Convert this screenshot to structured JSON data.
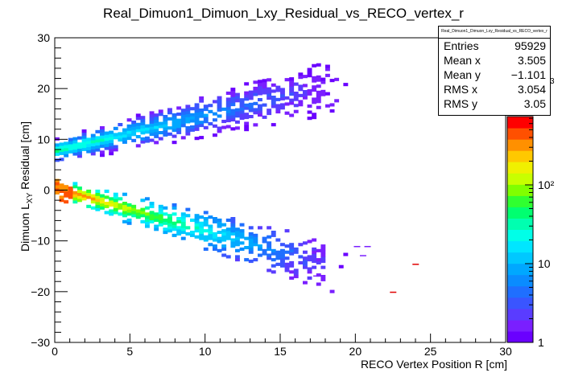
{
  "chart_data": {
    "type": "heatmap",
    "title": "Real_Dimuon1_Dimuon_Lxy_Residual_vs_RECO_vertex_r",
    "xlabel": "RECO Vertex Position R [cm]",
    "ylabel_main": "Dimuon L",
    "ylabel_sub": "XY",
    "ylabel_rest": " Residual [cm]",
    "xlim": [
      0,
      30
    ],
    "ylim": [
      -30,
      30
    ],
    "x_ticks": [
      "0",
      "5",
      "10",
      "15",
      "20",
      "25",
      "30"
    ],
    "y_ticks": [
      "−30",
      "−20",
      "−10",
      "0",
      "10",
      "20",
      "30"
    ],
    "z_scale": "log",
    "z_ticks": [
      "1",
      "10",
      "10²",
      "10³"
    ],
    "bands": [
      {
        "name": "upper",
        "x_start": 0,
        "x_end": 18,
        "y_at_start": 7.5,
        "y_at_end": 20
      },
      {
        "name": "lower",
        "x_start": 0,
        "x_end": 18,
        "y_at_start": 0,
        "y_at_end": -15
      }
    ],
    "stats": {
      "title": "Real_Dimuon1_Dimuon_Lxy_Residual_vs_RECO_vertex_r",
      "rows": [
        {
          "label": "Entries",
          "value": "95929"
        },
        {
          "label": "Mean x",
          "value": "3.505"
        },
        {
          "label": "Mean y",
          "value": "−1.101"
        },
        {
          "label": "RMS x",
          "value": "3.054"
        },
        {
          "label": "RMS y",
          "value": "3.05"
        }
      ]
    }
  }
}
